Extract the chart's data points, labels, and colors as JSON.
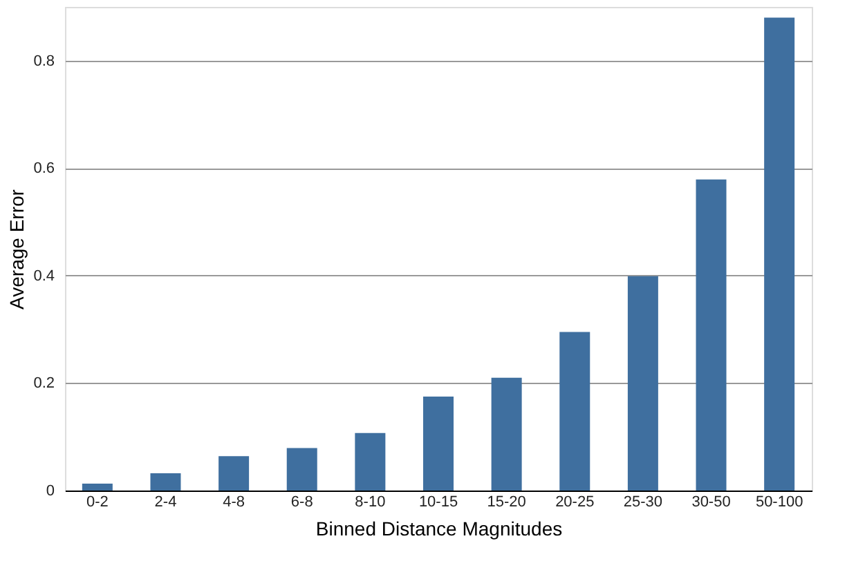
{
  "chart_data": {
    "type": "bar",
    "xlabel": "Binned Distance Magnitudes",
    "ylabel": "Average Error",
    "categories": [
      "0-2",
      "2-4",
      "4-8",
      "6-8",
      "8-10",
      "10-15",
      "15-20",
      "20-25",
      "25-30",
      "30-50",
      "50-100"
    ],
    "values": [
      0.013,
      0.032,
      0.064,
      0.079,
      0.107,
      0.175,
      0.21,
      0.295,
      0.399,
      0.579,
      0.88
    ],
    "color": "#3f6f9f",
    "ylim": [
      0,
      0.9
    ],
    "yticks": [
      0,
      0.2,
      0.4,
      0.6,
      0.8
    ],
    "grid": "y"
  }
}
